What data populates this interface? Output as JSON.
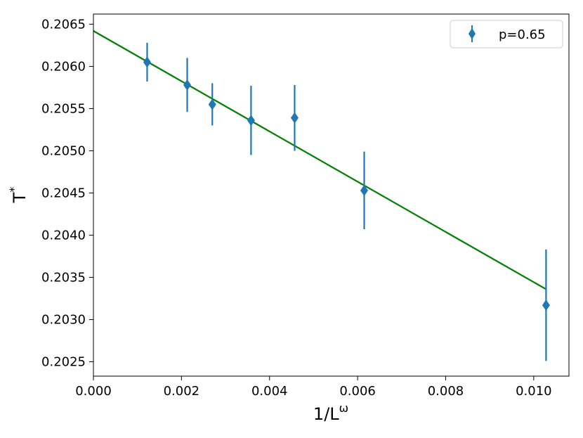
{
  "chart_data": {
    "type": "scatter",
    "xlabel_base": "1/L",
    "xlabel_sup": "ω",
    "ylabel_base": "T",
    "ylabel_sup": "*",
    "xlim": [
      0.0,
      0.0108
    ],
    "ylim": [
      0.20233,
      0.20662
    ],
    "x_ticks": [
      0.0,
      0.002,
      0.004,
      0.006,
      0.008,
      0.01
    ],
    "x_tick_labels": [
      "0.000",
      "0.002",
      "0.004",
      "0.006",
      "0.008",
      "0.010"
    ],
    "y_ticks": [
      0.2025,
      0.203,
      0.2035,
      0.204,
      0.2045,
      0.205,
      0.2055,
      0.206,
      0.2065
    ],
    "y_tick_labels": [
      "0.2025",
      "0.2030",
      "0.2035",
      "0.2040",
      "0.2045",
      "0.2050",
      "0.2055",
      "0.2060",
      "0.2065"
    ],
    "grid": false,
    "legend_position": "top-right",
    "series": [
      {
        "name": "p=0.65",
        "marker": "diamond",
        "color": "#1f77b4",
        "x": [
          0.00122,
          0.00213,
          0.0027,
          0.00358,
          0.00457,
          0.00615,
          0.01028
        ],
        "y": [
          0.20605,
          0.20578,
          0.20555,
          0.20536,
          0.20539,
          0.20453,
          0.20317
        ],
        "yerr": [
          0.00023,
          0.00032,
          0.00025,
          0.00041,
          0.00039,
          0.00046,
          0.00066
        ]
      }
    ],
    "fit_line": {
      "color": "#008000",
      "x": [
        0.0,
        0.01028
      ],
      "y": [
        0.20642,
        0.20336
      ]
    }
  }
}
